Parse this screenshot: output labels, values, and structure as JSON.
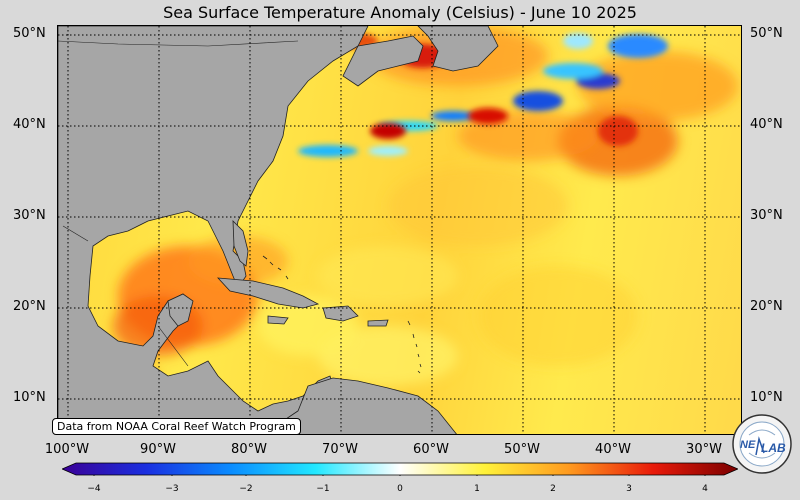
{
  "title": "Sea Surface Temperature Anomaly (Celsius) - June 10 2025",
  "lat_labels": [
    "50°N",
    "40°N",
    "30°N",
    "20°N",
    "10°N"
  ],
  "lon_labels": [
    "100°W",
    "90°W",
    "80°W",
    "70°W",
    "60°W",
    "50°W",
    "40°W",
    "30°W"
  ],
  "source_note": "Data from NOAA Coral Reef Watch Program",
  "colorbar": {
    "ticks": [
      "−4",
      "−3",
      "−2",
      "−1",
      "0",
      "1",
      "2",
      "3",
      "4"
    ],
    "colors": [
      "#3b0096",
      "#1a2fe0",
      "#0a8cff",
      "#22e8ff",
      "#ffffff",
      "#fff23a",
      "#ff9a1f",
      "#e81a0a",
      "#7a0000"
    ]
  },
  "logo": {
    "text_left": "NE",
    "text_right": "LAB",
    "icon": "neaq-lab-logo"
  },
  "colors": {
    "land": "#a6a6a6",
    "background": "#d9d9d9"
  }
}
